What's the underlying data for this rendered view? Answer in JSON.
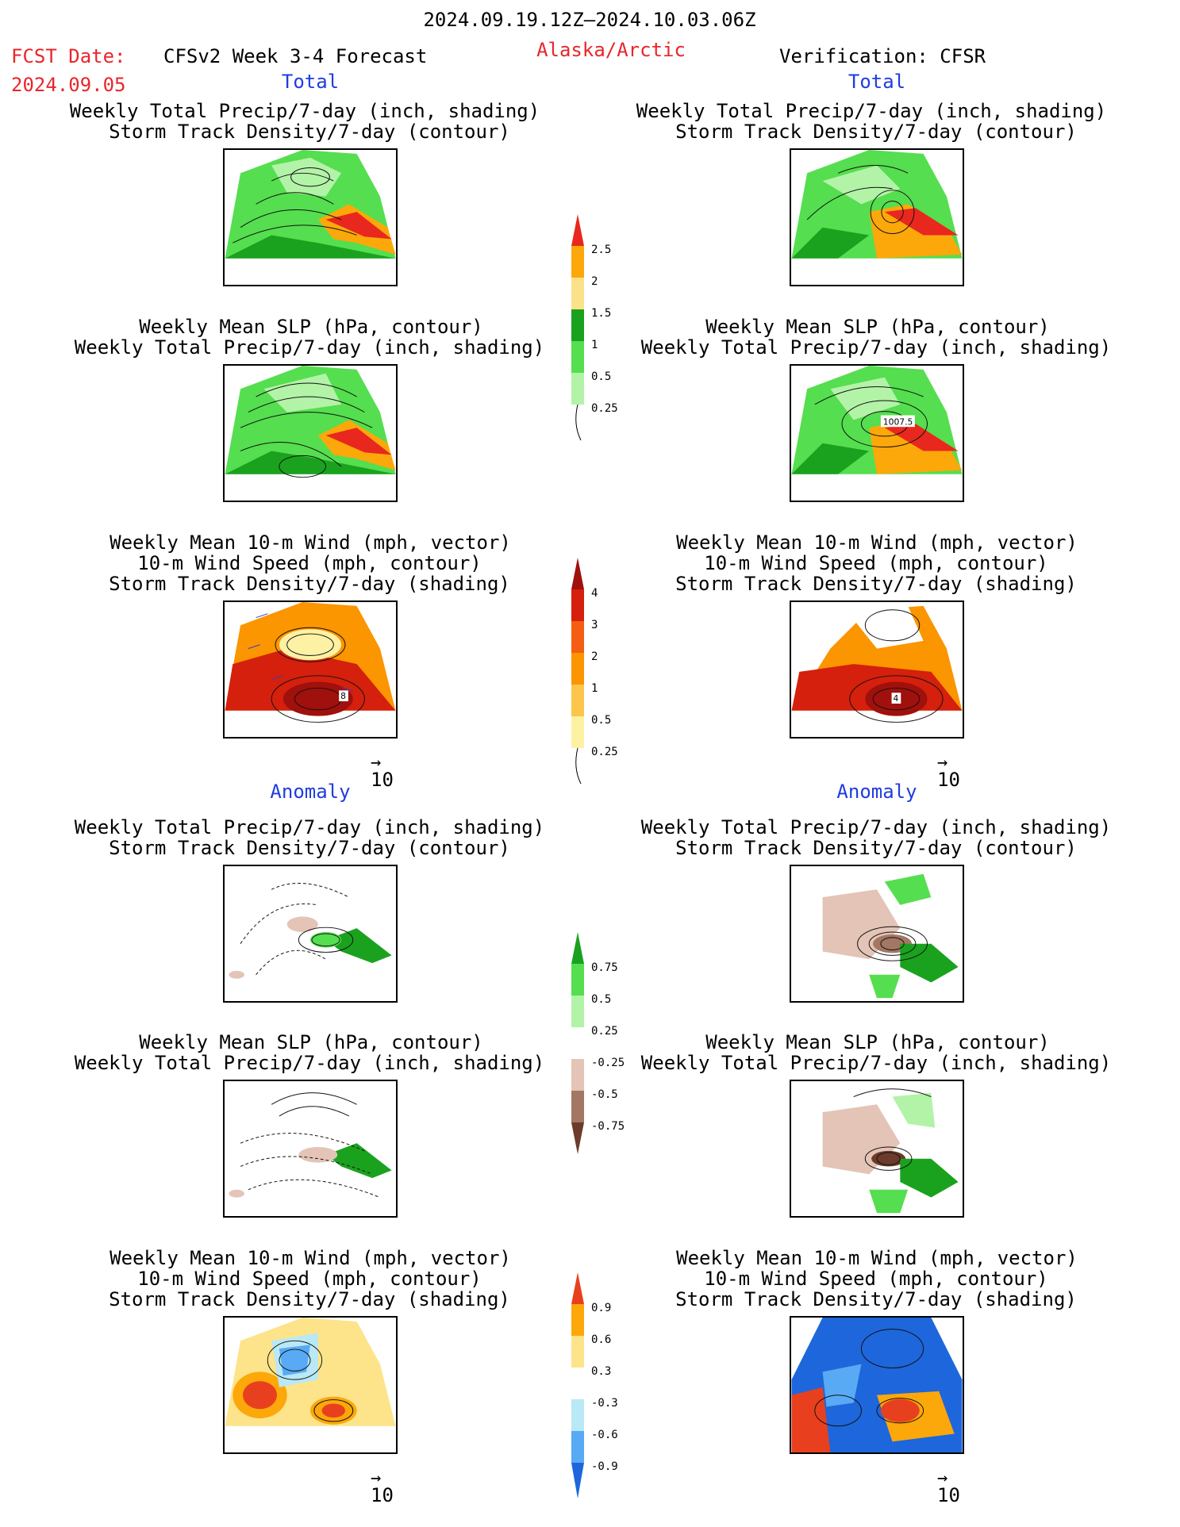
{
  "header": {
    "period": "2024.09.19.12Z–2024.10.03.06Z",
    "fcst_label": "FCST Date:",
    "fcst_date": "2024.09.05",
    "model": "CFSv2 Week 3-4 Forecast",
    "region": "Alaska/Arctic",
    "verification": "Verification: CFSR"
  },
  "sections": {
    "total": "Total",
    "anomaly": "Anomaly"
  },
  "titles": {
    "precip_track": [
      "Weekly Total Precip/7-day (inch, shading)",
      "Storm Track Density/7-day (contour)"
    ],
    "slp_precip": [
      "Weekly Mean SLP (hPa, contour)",
      "Weekly Total Precip/7-day (inch, shading)"
    ],
    "wind": [
      "Weekly Mean 10-m Wind (mph, vector)",
      "10-m Wind Speed (mph, contour)",
      "Storm Track Density/7-day (shading)"
    ]
  },
  "vector_ref": "10",
  "colorbars": {
    "precip_total": {
      "colors": [
        "#b3f3a8",
        "#55de4f",
        "#1aa21f",
        "#fbe28a",
        "#fca80a",
        "#e8281e"
      ],
      "labels": [
        "0.25",
        "0.5",
        "1",
        "1.5",
        "2",
        "2.5"
      ]
    },
    "track_total": {
      "colors": [
        "#fdf1a4",
        "#fcc54c",
        "#fb9500",
        "#f35e12",
        "#d4200c",
        "#a0100c"
      ],
      "labels": [
        "0.25",
        "0.5",
        "1",
        "2",
        "3",
        "4"
      ]
    },
    "precip_anom": {
      "colors": [
        "#6b3b2b",
        "#a37763",
        "#e3c4b6",
        "#ffffff",
        "#b3f3a8",
        "#55de4f",
        "#1aa21f"
      ],
      "labels": [
        "-0.75",
        "-0.5",
        "-0.25",
        "0.25",
        "0.5",
        "0.75"
      ]
    },
    "track_anom": {
      "colors": [
        "#1e66db",
        "#58aaf5",
        "#b9e8f7",
        "#ffffff",
        "#fde48a",
        "#fca80a",
        "#e8401e"
      ],
      "labels": [
        "-0.9",
        "-0.6",
        "-0.3",
        "0.3",
        "0.6",
        "0.9"
      ]
    }
  },
  "map_labels": {
    "slp_cfsr": "1007.5",
    "wind_fcst": "8",
    "wind_cfsr": "4"
  }
}
